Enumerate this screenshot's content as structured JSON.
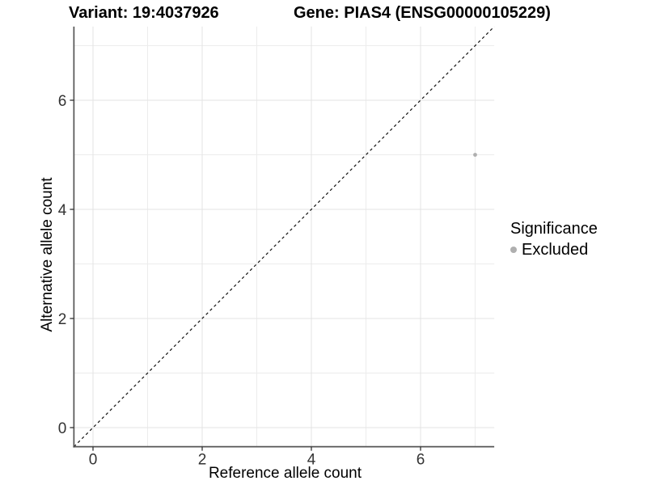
{
  "chart_data": {
    "type": "scatter",
    "title_left": "Variant: 19:4037926",
    "title_right": "Gene: PIAS4 (ENSG00000105229)",
    "xlabel": "Reference allele count",
    "ylabel": "Alternative allele count",
    "xlim": [
      -0.35,
      7.35
    ],
    "ylim": [
      -0.35,
      7.35
    ],
    "x_major_ticks": [
      0,
      2,
      4,
      6
    ],
    "x_minor_ticks": [
      1,
      3,
      5,
      7
    ],
    "y_major_ticks": [
      0,
      2,
      4,
      6
    ],
    "y_minor_ticks": [
      1,
      3,
      5,
      7
    ],
    "grid": true,
    "identity_line": {
      "style": "dashed",
      "from": -0.35,
      "to": 7.35
    },
    "points": [
      {
        "x": 7,
        "y": 5,
        "significance": "Excluded"
      }
    ],
    "legend": {
      "title": "Significance",
      "position": "right",
      "items": [
        {
          "label": "Excluded",
          "color": "#AFAFAF"
        }
      ]
    },
    "colors": {
      "background": "#FFFFFF",
      "grid_major": "#E3E3E3",
      "grid_minor": "#ECECEC",
      "axis_line": "#555555",
      "tick_mark": "#333333",
      "tick_text": "#333333",
      "identity_line": "#111111",
      "point": "#AFAFAF"
    }
  }
}
